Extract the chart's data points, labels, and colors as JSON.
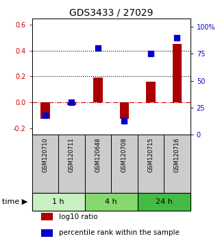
{
  "title": "GDS3433 / 27029",
  "categories": [
    "GSM120710",
    "GSM120711",
    "GSM120648",
    "GSM120708",
    "GSM120715",
    "GSM120716"
  ],
  "log10_ratio": [
    -0.13,
    -0.02,
    0.19,
    -0.13,
    0.16,
    0.45
  ],
  "percentile_rank": [
    18,
    30,
    80,
    13,
    75,
    90
  ],
  "left_ylim": [
    -0.25,
    0.65
  ],
  "right_ylim": [
    0,
    108
  ],
  "left_yticks": [
    -0.2,
    0.0,
    0.2,
    0.4,
    0.6
  ],
  "right_yticks": [
    0,
    25,
    50,
    75,
    100
  ],
  "right_yticklabels": [
    "0",
    "25",
    "50",
    "75",
    "100%"
  ],
  "dotted_lines": [
    0.2,
    0.4
  ],
  "dashed_zero": 0.0,
  "time_groups": [
    {
      "label": "1 h",
      "start": 0,
      "end": 2,
      "color": "#c8f0c0"
    },
    {
      "label": "4 h",
      "start": 2,
      "end": 4,
      "color": "#88d870"
    },
    {
      "label": "24 h",
      "start": 4,
      "end": 6,
      "color": "#44bb44"
    }
  ],
  "bar_color": "#aa0000",
  "point_color": "#0000cc",
  "bar_width": 0.35,
  "point_size": 28,
  "bg_color": "#ffffff",
  "left_label_color": "#cc0000",
  "right_label_color": "#0000cc",
  "legend_bar_label": "log10 ratio",
  "legend_point_label": "percentile rank within the sample",
  "time_label": "time",
  "fontsize_title": 10,
  "fontsize_ticks": 7,
  "fontsize_xlabels": 6,
  "fontsize_time": 8,
  "fontsize_legend": 7.5
}
